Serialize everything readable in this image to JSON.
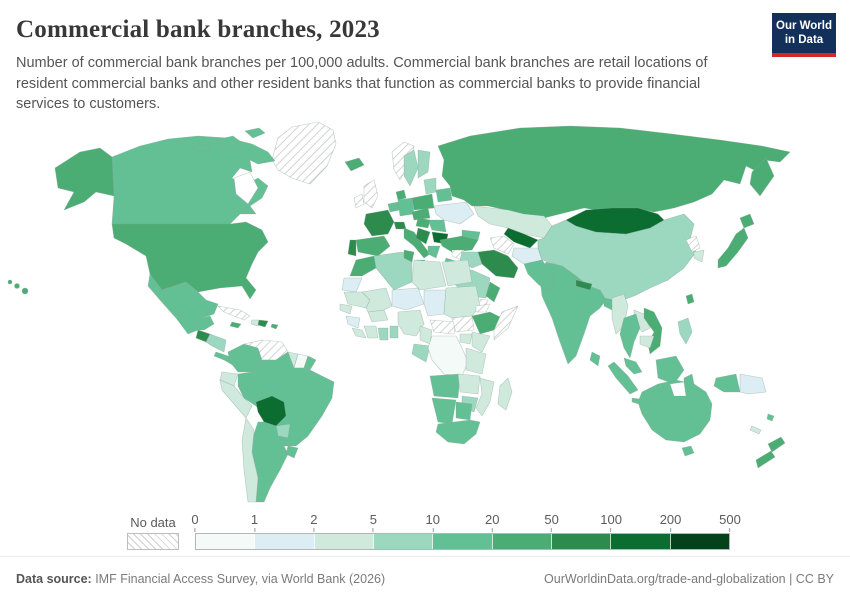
{
  "header": {
    "title": "Commercial bank branches, 2023",
    "subtitle": "Number of commercial bank branches per 100,000 adults. Commercial bank branches are retail locations of resident commercial banks and other resident banks that function as commercial banks to provide financial services to customers.",
    "logo": {
      "line1": "Our World",
      "line2": "in Data"
    }
  },
  "chart_data": {
    "type": "choropleth_map",
    "title": "Commercial bank branches, 2023",
    "metric": "Number of commercial bank branches per 100,000 adults",
    "year": "2023",
    "legend_no_data_label": "No data",
    "legend_tick_labels": [
      "0",
      "1",
      "2",
      "5",
      "10",
      "20",
      "50",
      "100",
      "200",
      "500"
    ],
    "legend_bin_ranges": [
      "0-1",
      "1-2",
      "2-5",
      "5-10",
      "10-20",
      "20-50",
      "50-100",
      "100-200",
      "200-500"
    ],
    "legend_colors": [
      "#f4faf8",
      "#dcedf3",
      "#cfeadd",
      "#9cd7bf",
      "#63c095",
      "#4bad74",
      "#2e8b4e",
      "#0c6d30",
      "#06411c"
    ],
    "region_bins": {
      "canada": 4,
      "usa": 5,
      "alaska": 5,
      "greenland": "nd",
      "iceland": 5,
      "mexico": 4,
      "guatemala": 6,
      "honduras-nicaragua": 3,
      "costa-rica-panama": 4,
      "cuba": "nd",
      "jamaica": 5,
      "haiti": 2,
      "dominican-republic": 6,
      "puerto-rico": 5,
      "hawaii": 5,
      "colombia": 4,
      "venezuela": "nd",
      "guyana": 2,
      "suriname": 0,
      "french-guiana": 4,
      "ecuador": 2,
      "peru": 2,
      "brazil": 4,
      "bolivia": 7,
      "paraguay": 3,
      "uruguay": 4,
      "argentina": 4,
      "chile": 2,
      "norway": "nd",
      "sweden": 3,
      "finland": 3,
      "denmark": 5,
      "uk": "nd",
      "ireland": "nd",
      "france": 6,
      "spain": 5,
      "portugal": 6,
      "benelux": 4,
      "germany": 4,
      "switzerland": 6,
      "italy": 5,
      "sicily": 5,
      "austria-czechia": 5,
      "poland": 5,
      "baltics": 3,
      "belarus": 4,
      "ukraine": 1,
      "romania": 4,
      "hungary": 5,
      "serbia-balkans": 6,
      "bulgaria": 7,
      "greece": 4,
      "russia": 5,
      "kamchatka": 5,
      "turkey": 5,
      "caucasus": 4,
      "kazakhstan": 2,
      "uzbekistan": 7,
      "turkmenistan": "nd",
      "kyrgyzstan-tajikistan": 2,
      "afghanistan": 1,
      "iran": 6,
      "iraq": 3,
      "syria": "nd",
      "israel-jordan": 4,
      "saudi-arabia": 3,
      "yemen": "nd",
      "oman": 5,
      "china": 3,
      "mongolia": 7,
      "north-korea": "nd",
      "south-korea": 2,
      "japan": 5,
      "hokkaido": 5,
      "taiwan": 5,
      "nepal": 6,
      "bangladesh": 4,
      "india": 4,
      "pakistan": 4,
      "sri-lanka": 4,
      "myanmar": 2,
      "thailand": 4,
      "laos": 2,
      "cambodia": 2,
      "vietnam": 5,
      "malaysia": 4,
      "borneo": 4,
      "sumatra": 4,
      "java": 4,
      "sulawesi": 4,
      "west-new-guinea": 4,
      "papua-new-guinea": 1,
      "philippines": 3,
      "australia": 4,
      "tasmania": 4,
      "new-zealand-north": 5,
      "new-zealand-south": 5,
      "fiji": 4,
      "new-caledonia": 2,
      "morocco": 5,
      "western-sahara": 1,
      "mauritania": 2,
      "senegal": 2,
      "guinea": 1,
      "sierra-leone-liberia": 2,
      "ivory-coast": 2,
      "ghana": 3,
      "togo-benin": 3,
      "burkina-faso": 2,
      "mali": 2,
      "niger": 1,
      "nigeria": 2,
      "chad": 1,
      "sudan": 2,
      "eritrea": "nd",
      "ethiopia": 5,
      "somalia": "nd",
      "south-sudan": "nd",
      "central-african-republic": "nd",
      "cameroon": 2,
      "egypt": 2,
      "libya": 2,
      "algeria": 3,
      "tunisia": 5,
      "uganda": 2,
      "kenya": 2,
      "gabon-congo": 3,
      "drc": 0,
      "tanzania": 2,
      "angola": 4,
      "zambia": 2,
      "mozambique": 2,
      "zimbabwe": 3,
      "namibia": 4,
      "botswana": 4,
      "south-africa": 4,
      "madagascar": 2
    }
  },
  "footer": {
    "source_label": "Data source:",
    "source_text": " IMF Financial Access Survey, via World Bank (2026)",
    "link_text": "OurWorldinData.org/trade-and-globalization | CC BY"
  },
  "colors": {
    "logo_navy": "#12305a",
    "logo_red": "#cf2a27",
    "title_text": "#383838",
    "subtitle_text": "#555555",
    "map_border": "#8aa399"
  }
}
